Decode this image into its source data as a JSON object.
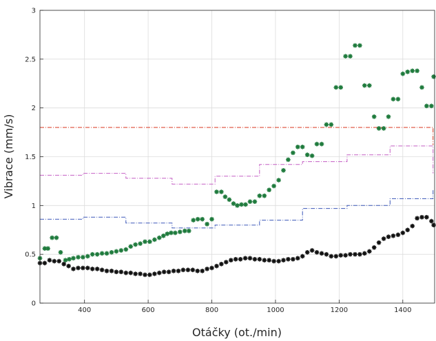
{
  "chart_data": {
    "type": "scatter",
    "title": "",
    "xlabel": "Otáčky (ot./min)",
    "ylabel": "Vibrace (mm/s)",
    "xlim": [
      260,
      1500
    ],
    "ylim": [
      0,
      3
    ],
    "x_ticks": [
      400,
      600,
      800,
      1000,
      1200,
      1400
    ],
    "x_tick_labels": [
      "400",
      "600",
      "800",
      "1000",
      "1200",
      "1400"
    ],
    "y_ticks": [
      0,
      0.5,
      1,
      1.5,
      2,
      2.5,
      3
    ],
    "y_tick_labels": [
      "0",
      "0.5",
      "1",
      "1.5",
      "2",
      "2.5",
      "3"
    ],
    "grid": true,
    "legend": false,
    "colors": {
      "green_series": "#1e7a3c",
      "black_series": "#111111",
      "red_limit": "#d9351c",
      "magenta_limit": "#c45ec4",
      "blue_limit": "#3a56b8",
      "grid": "#dcdcdc",
      "axes": "#262626"
    },
    "series": [
      {
        "kind": "scatter",
        "color_key": "green_series",
        "x": [
          260,
          275,
          285,
          298,
          312,
          325,
          340,
          352,
          365,
          380,
          395,
          410,
          425,
          440,
          455,
          470,
          485,
          500,
          515,
          530,
          545,
          560,
          575,
          590,
          605,
          620,
          635,
          648,
          660,
          672,
          685,
          700,
          715,
          728,
          742,
          756,
          770,
          785,
          800,
          815,
          830,
          842,
          855,
          868,
          880,
          893,
          906,
          920,
          935,
          950,
          965,
          980,
          995,
          1010,
          1025,
          1040,
          1055,
          1070,
          1085,
          1100,
          1115,
          1130,
          1145,
          1160,
          1175,
          1190,
          1205,
          1220,
          1235,
          1250,
          1265,
          1280,
          1295,
          1310,
          1325,
          1340,
          1355,
          1370,
          1385,
          1400,
          1415,
          1430,
          1445,
          1460,
          1475,
          1490,
          1497
        ],
        "y": [
          0.46,
          0.56,
          0.56,
          0.67,
          0.67,
          0.52,
          0.44,
          0.45,
          0.46,
          0.47,
          0.47,
          0.48,
          0.5,
          0.5,
          0.51,
          0.51,
          0.52,
          0.53,
          0.54,
          0.55,
          0.58,
          0.6,
          0.61,
          0.63,
          0.63,
          0.65,
          0.67,
          0.69,
          0.71,
          0.72,
          0.72,
          0.73,
          0.74,
          0.74,
          0.85,
          0.86,
          0.86,
          0.81,
          0.86,
          1.14,
          1.14,
          1.09,
          1.06,
          1.02,
          1.0,
          1.01,
          1.01,
          1.04,
          1.04,
          1.1,
          1.1,
          1.16,
          1.2,
          1.26,
          1.36,
          1.47,
          1.54,
          1.6,
          1.6,
          1.52,
          1.51,
          1.63,
          1.63,
          1.83,
          1.83,
          2.21,
          2.21,
          2.53,
          2.53,
          2.64,
          2.64,
          2.23,
          2.23,
          1.91,
          1.79,
          1.79,
          1.91,
          2.09,
          2.09,
          2.35,
          2.37,
          2.38,
          2.38,
          2.21,
          2.02,
          2.02,
          2.32
        ]
      },
      {
        "kind": "scatter",
        "color_key": "black_series",
        "x": [
          260,
          275,
          290,
          305,
          320,
          335,
          350,
          365,
          380,
          395,
          410,
          425,
          440,
          455,
          470,
          485,
          500,
          515,
          530,
          545,
          560,
          575,
          590,
          605,
          620,
          635,
          650,
          665,
          680,
          695,
          710,
          725,
          740,
          755,
          770,
          785,
          800,
          815,
          830,
          845,
          860,
          875,
          890,
          905,
          920,
          935,
          950,
          965,
          980,
          995,
          1010,
          1025,
          1040,
          1055,
          1070,
          1085,
          1100,
          1115,
          1130,
          1145,
          1160,
          1175,
          1190,
          1205,
          1220,
          1235,
          1250,
          1265,
          1280,
          1295,
          1310,
          1325,
          1340,
          1355,
          1370,
          1385,
          1400,
          1415,
          1430,
          1445,
          1460,
          1475,
          1490,
          1497
        ],
        "y": [
          0.41,
          0.41,
          0.44,
          0.43,
          0.43,
          0.4,
          0.38,
          0.35,
          0.36,
          0.36,
          0.36,
          0.35,
          0.35,
          0.34,
          0.33,
          0.33,
          0.32,
          0.32,
          0.31,
          0.31,
          0.3,
          0.3,
          0.29,
          0.29,
          0.3,
          0.31,
          0.32,
          0.32,
          0.33,
          0.33,
          0.34,
          0.34,
          0.34,
          0.33,
          0.33,
          0.35,
          0.36,
          0.38,
          0.4,
          0.42,
          0.44,
          0.45,
          0.45,
          0.46,
          0.46,
          0.45,
          0.45,
          0.44,
          0.44,
          0.43,
          0.43,
          0.44,
          0.45,
          0.45,
          0.46,
          0.48,
          0.52,
          0.54,
          0.52,
          0.51,
          0.5,
          0.48,
          0.48,
          0.49,
          0.49,
          0.5,
          0.5,
          0.5,
          0.51,
          0.53,
          0.57,
          0.62,
          0.66,
          0.68,
          0.69,
          0.7,
          0.72,
          0.75,
          0.79,
          0.87,
          0.88,
          0.88,
          0.84,
          0.8
        ]
      },
      {
        "kind": "step-line",
        "style": "dash-dot",
        "color_key": "red_limit",
        "x": [
          260,
          1495,
          1495
        ],
        "y": [
          1.8,
          1.8,
          1.62
        ]
      },
      {
        "kind": "step-line",
        "style": "dash-dot",
        "color_key": "magenta_limit",
        "x": [
          260,
          395,
          395,
          530,
          530,
          675,
          675,
          810,
          810,
          950,
          950,
          1085,
          1085,
          1225,
          1225,
          1360,
          1360,
          1495,
          1495
        ],
        "y": [
          1.31,
          1.31,
          1.33,
          1.33,
          1.28,
          1.28,
          1.22,
          1.22,
          1.3,
          1.3,
          1.42,
          1.42,
          1.45,
          1.45,
          1.52,
          1.52,
          1.61,
          1.61,
          1.33
        ]
      },
      {
        "kind": "step-line",
        "style": "dash-dot",
        "color_key": "blue_limit",
        "x": [
          260,
          395,
          395,
          530,
          530,
          675,
          675,
          810,
          810,
          950,
          950,
          1085,
          1085,
          1225,
          1225,
          1360,
          1360,
          1495,
          1495
        ],
        "y": [
          0.86,
          0.86,
          0.88,
          0.88,
          0.82,
          0.82,
          0.77,
          0.77,
          0.8,
          0.8,
          0.85,
          0.85,
          0.97,
          0.97,
          1.0,
          1.0,
          1.07,
          1.07,
          1.16
        ]
      }
    ]
  }
}
